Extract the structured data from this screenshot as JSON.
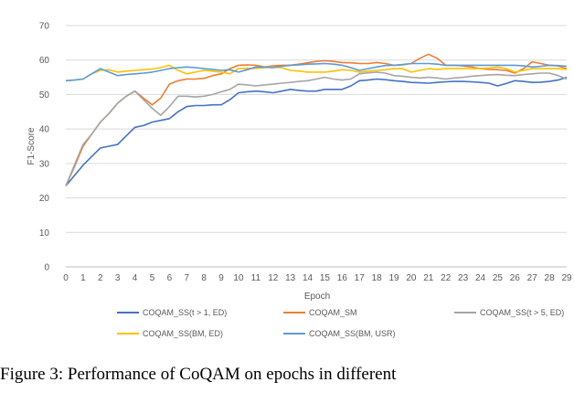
{
  "chart_data": {
    "type": "line",
    "xlabel": "Epoch",
    "ylabel": "F1-Score",
    "ylim": [
      0,
      70
    ],
    "yticks": [
      0,
      10,
      20,
      30,
      40,
      50,
      60,
      70
    ],
    "x": [
      0,
      0.5,
      1,
      1.5,
      2,
      2.5,
      3,
      3.5,
      4,
      4.5,
      5,
      5.5,
      6,
      6.5,
      7,
      7.5,
      8,
      8.5,
      9,
      9.5,
      10,
      10.5,
      11,
      11.5,
      12,
      12.5,
      13,
      13.5,
      14,
      14.5,
      15,
      15.5,
      16,
      16.5,
      17,
      17.5,
      18,
      18.5,
      19,
      19.5,
      20,
      20.5,
      21,
      21.5,
      22,
      22.5,
      23,
      23.5,
      24,
      24.5,
      25,
      25.5,
      26,
      26.5,
      27,
      27.5,
      28,
      28.5,
      29
    ],
    "grid": "horizontal",
    "legend_position": "bottom",
    "series": [
      {
        "name": "COQAM_SS(t > 1, ED)",
        "color": "#4472C4",
        "values": [
          23.5,
          26.5,
          29.5,
          32,
          34.5,
          35,
          35.5,
          38,
          40.5,
          41,
          42,
          42.5,
          43,
          45,
          46.5,
          46.8,
          46.8,
          47,
          47,
          48.5,
          50.5,
          50.8,
          51,
          50.8,
          50.5,
          51,
          51.5,
          51.2,
          51,
          51,
          51.5,
          51.5,
          51.5,
          52.5,
          54,
          54.2,
          54.5,
          54.3,
          54,
          53.8,
          53.5,
          53.4,
          53.3,
          53.5,
          53.7,
          53.8,
          53.8,
          53.7,
          53.5,
          53.3,
          52.5,
          53.2,
          54,
          53.8,
          53.5,
          53.6,
          53.8,
          54.2,
          55
        ]
      },
      {
        "name": "COQAM_SM",
        "color": "#ED7D31",
        "values": [
          23.5,
          29,
          35,
          38.5,
          42,
          44.5,
          47.5,
          49.5,
          51,
          49,
          47,
          49,
          53,
          54,
          54.5,
          54.5,
          54.7,
          55.5,
          56,
          57.5,
          58.5,
          58.6,
          58.5,
          58,
          58.3,
          58.5,
          58.5,
          58.8,
          59.2,
          59.6,
          59.8,
          59.6,
          59.3,
          59.2,
          59,
          59,
          59.3,
          59,
          58.5,
          58.6,
          59,
          60.5,
          61.7,
          60.5,
          58.5,
          58.5,
          58.3,
          58,
          57.5,
          57.3,
          57.2,
          57,
          56.2,
          57.5,
          59.5,
          59,
          58.5,
          58.3,
          57.5
        ]
      },
      {
        "name": "COQAM_SS(t > 5, ED)",
        "color": "#A5A5A5",
        "values": [
          23.5,
          29.5,
          35.5,
          38.5,
          42,
          44.5,
          47.5,
          49.5,
          51,
          48.5,
          46,
          44,
          46.5,
          49.5,
          49.5,
          49.3,
          49.5,
          50,
          50.8,
          51.5,
          53,
          52.8,
          52.5,
          52.8,
          53,
          53.3,
          53.5,
          53.8,
          54,
          54.5,
          55,
          54.5,
          54.2,
          54.5,
          56,
          56.3,
          56.5,
          56.2,
          55.5,
          55.3,
          55,
          54.8,
          55,
          54.8,
          54.5,
          54.8,
          55,
          55.3,
          55.5,
          55.7,
          55.8,
          55.6,
          55.5,
          55.8,
          56,
          56.2,
          56.2,
          55.5,
          54.5
        ]
      },
      {
        "name": "COQAM_SS(BM, ED)",
        "color": "#FFC000",
        "values": [
          54,
          54.2,
          54.5,
          56,
          57,
          57.2,
          56.5,
          56.8,
          57,
          57.2,
          57.4,
          57.8,
          58.5,
          57,
          56,
          56.5,
          57,
          56.8,
          56.5,
          56,
          57.5,
          57.6,
          57.6,
          57.8,
          58,
          57.8,
          57,
          56.8,
          56.5,
          56.5,
          56.5,
          56.8,
          57.2,
          57,
          56.5,
          56.8,
          57,
          57.2,
          57.5,
          57.5,
          56.5,
          57,
          57.5,
          57.3,
          57.5,
          57.5,
          57.5,
          57.5,
          57.5,
          57.7,
          58,
          57.5,
          56.5,
          57,
          57.5,
          57.5,
          57.5,
          57.5,
          57.3
        ]
      },
      {
        "name": "COQAM_SS(BM, USR)",
        "color": "#5B9BD5",
        "values": [
          54,
          54.2,
          54.5,
          56,
          57.5,
          56.5,
          55.5,
          55.8,
          56,
          56.2,
          56.5,
          57,
          57.5,
          57.8,
          58,
          57.8,
          57.5,
          57.3,
          57,
          57.2,
          56.5,
          57.2,
          58,
          57.9,
          57.8,
          58.2,
          58.5,
          58.6,
          58.8,
          58.9,
          59,
          58.8,
          58.5,
          57.8,
          57,
          57.5,
          58,
          58.4,
          58.5,
          58.7,
          59,
          59,
          59,
          58.8,
          58.5,
          58.5,
          58.5,
          58.5,
          58.5,
          58.5,
          58.5,
          58.5,
          58.5,
          58.3,
          58,
          58.2,
          58.5,
          58.4,
          58.2
        ]
      }
    ]
  },
  "caption": "Figure 3: Performance of CoQAM on epochs in different"
}
